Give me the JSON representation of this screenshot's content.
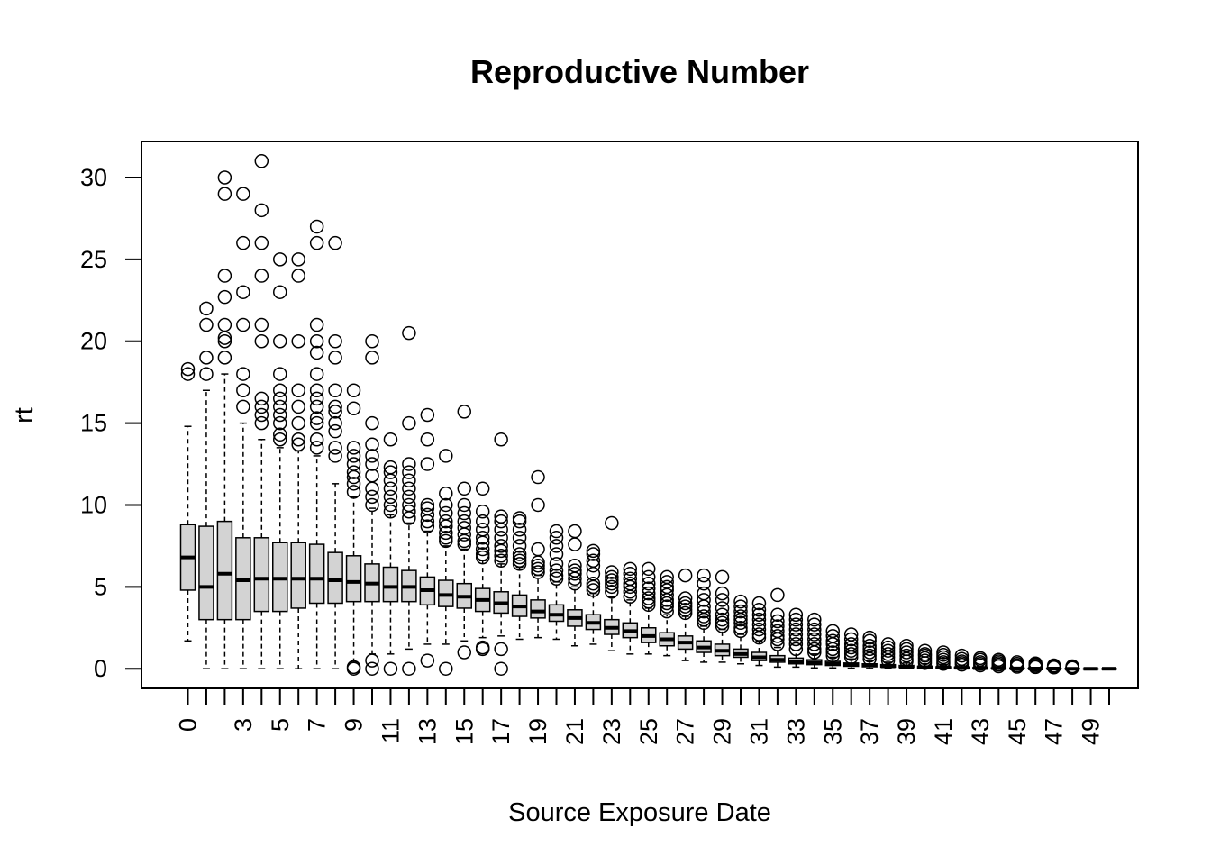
{
  "chart_data": {
    "type": "boxplot",
    "title": "Reproductive Number",
    "xlabel": "Source Exposure Date",
    "ylabel": "rt",
    "ylim": [
      -1.2,
      32.2
    ],
    "y_ticks": [
      0,
      5,
      10,
      15,
      20,
      25,
      30
    ],
    "x_tick_labels": [
      "0",
      "3",
      "5",
      "7",
      "9",
      "11",
      "13",
      "15",
      "17",
      "19",
      "21",
      "23",
      "25",
      "27",
      "29",
      "31",
      "33",
      "35",
      "37",
      "39",
      "41",
      "43",
      "45",
      "47",
      "49"
    ],
    "fill_color": "#d3d3d3",
    "categories": [
      0,
      1,
      2,
      3,
      4,
      5,
      6,
      7,
      8,
      9,
      10,
      11,
      12,
      13,
      14,
      15,
      16,
      17,
      18,
      19,
      20,
      21,
      22,
      23,
      24,
      25,
      26,
      27,
      28,
      29,
      30,
      31,
      32,
      33,
      34,
      35,
      36,
      37,
      38,
      39,
      40,
      41,
      42,
      43,
      44,
      45,
      46,
      47,
      48,
      49,
      50
    ],
    "boxes": [
      {
        "x": 0,
        "lower_whisker": 1.7,
        "q1": 4.8,
        "median": 6.8,
        "q3": 8.8,
        "upper_whisker": 14.8,
        "outliers": [
          18,
          18.3
        ]
      },
      {
        "x": 1,
        "lower_whisker": 0,
        "q1": 3,
        "median": 5,
        "q3": 8.7,
        "upper_whisker": 17,
        "outliers": [
          18,
          19,
          21,
          22
        ]
      },
      {
        "x": 2,
        "lower_whisker": 0,
        "q1": 3,
        "median": 5.8,
        "q3": 9,
        "upper_whisker": 18,
        "outliers": [
          19,
          20,
          20.2,
          21,
          22.7,
          24,
          29,
          30
        ]
      },
      {
        "x": 3,
        "lower_whisker": 0,
        "q1": 3,
        "median": 5.4,
        "q3": 8,
        "upper_whisker": 15,
        "outliers": [
          16,
          17,
          18,
          21,
          23,
          26,
          29
        ]
      },
      {
        "x": 4,
        "lower_whisker": 0,
        "q1": 3.5,
        "median": 5.5,
        "q3": 8,
        "upper_whisker": 14,
        "outliers": [
          15,
          15.5,
          16,
          16.5,
          20,
          21,
          24,
          26,
          28,
          31
        ]
      },
      {
        "x": 5,
        "lower_whisker": 0,
        "q1": 3.5,
        "median": 5.5,
        "q3": 7.7,
        "upper_whisker": 13.5,
        "outliers": [
          14,
          14.3,
          15,
          15.5,
          16,
          16.5,
          17,
          18,
          20,
          23,
          25
        ]
      },
      {
        "x": 6,
        "lower_whisker": 0,
        "q1": 3.7,
        "median": 5.5,
        "q3": 7.7,
        "upper_whisker": 13.3,
        "outliers": [
          13.7,
          14,
          15,
          16,
          17,
          20,
          24,
          25
        ]
      },
      {
        "x": 7,
        "lower_whisker": 0,
        "q1": 4,
        "median": 5.5,
        "q3": 7.6,
        "upper_whisker": 13,
        "outliers": [
          13.5,
          14,
          15,
          15.3,
          16,
          16.5,
          17,
          18,
          19.3,
          20,
          21,
          26,
          27
        ]
      },
      {
        "x": 8,
        "lower_whisker": 0,
        "q1": 4,
        "median": 5.4,
        "q3": 7.1,
        "upper_whisker": 11.3,
        "outliers": [
          13,
          13.5,
          14.5,
          15,
          15.7,
          16,
          17,
          19,
          20,
          26
        ]
      },
      {
        "x": 9,
        "lower_whisker": 0.4,
        "q1": 4.1,
        "median": 5.3,
        "q3": 6.9,
        "upper_whisker": 10.5,
        "outliers": [
          0,
          0.1,
          10.8,
          11.3,
          11.7,
          12,
          12.5,
          13,
          13.5,
          15.9,
          17
        ]
      },
      {
        "x": 10,
        "lower_whisker": 0.9,
        "q1": 4.1,
        "median": 5.2,
        "q3": 6.4,
        "upper_whisker": 9.8,
        "outliers": [
          0,
          0.5,
          10,
          10.5,
          11,
          11.8,
          12.5,
          13,
          13.7,
          15,
          19,
          20
        ]
      },
      {
        "x": 11,
        "lower_whisker": 0.9,
        "q1": 4.1,
        "median": 5,
        "q3": 6.2,
        "upper_whisker": 9.4,
        "outliers": [
          0,
          9.6,
          10,
          10.5,
          11,
          11.5,
          12,
          12.3,
          14
        ]
      },
      {
        "x": 12,
        "lower_whisker": 1.2,
        "q1": 4.1,
        "median": 5,
        "q3": 6,
        "upper_whisker": 8.9,
        "outliers": [
          0,
          9.2,
          9.6,
          10,
          10.5,
          11,
          11.5,
          12,
          12.5,
          15,
          20.5
        ]
      },
      {
        "x": 13,
        "lower_whisker": 1.5,
        "q1": 3.9,
        "median": 4.8,
        "q3": 5.6,
        "upper_whisker": 8.4,
        "outliers": [
          0.5,
          8.7,
          9,
          9.4,
          9.8,
          10,
          12.5,
          14,
          15.5
        ]
      },
      {
        "x": 14,
        "lower_whisker": 1.5,
        "q1": 3.8,
        "median": 4.5,
        "q3": 5.4,
        "upper_whisker": 7.5,
        "outliers": [
          0,
          7.8,
          8,
          8.3,
          8.7,
          9,
          9.5,
          10,
          10.7,
          13
        ]
      },
      {
        "x": 15,
        "lower_whisker": 1.7,
        "q1": 3.7,
        "median": 4.4,
        "q3": 5.2,
        "upper_whisker": 7.3,
        "outliers": [
          1,
          7.6,
          7.8,
          8.2,
          8.6,
          9,
          9.5,
          10,
          11,
          15.7
        ]
      },
      {
        "x": 16,
        "lower_whisker": 1.9,
        "q1": 3.5,
        "median": 4.2,
        "q3": 4.9,
        "upper_whisker": 6.6,
        "outliers": [
          1.2,
          1.3,
          6.8,
          7,
          7.3,
          7.7,
          8,
          8.5,
          9,
          9.6,
          11
        ]
      },
      {
        "x": 17,
        "lower_whisker": 2,
        "q1": 3.4,
        "median": 4,
        "q3": 4.7,
        "upper_whisker": 6.4,
        "outliers": [
          0,
          1.2,
          6.6,
          6.9,
          7.2,
          7.5,
          8,
          8.5,
          9,
          9.3,
          14
        ]
      },
      {
        "x": 18,
        "lower_whisker": 1.8,
        "q1": 3.2,
        "median": 3.8,
        "q3": 4.5,
        "upper_whisker": 6.2,
        "outliers": [
          6.4,
          6.6,
          6.8,
          7,
          7.5,
          8,
          8.5,
          9,
          9.2
        ]
      },
      {
        "x": 19,
        "lower_whisker": 1.9,
        "q1": 3.1,
        "median": 3.5,
        "q3": 4.2,
        "upper_whisker": 5.7,
        "outliers": [
          5.9,
          6.1,
          6.3,
          6.5,
          7.3,
          10,
          11.7
        ]
      },
      {
        "x": 20,
        "lower_whisker": 1.8,
        "q1": 2.9,
        "median": 3.3,
        "q3": 3.9,
        "upper_whisker": 5.3,
        "outliers": [
          5.5,
          5.7,
          6,
          6.4,
          7,
          7.5,
          8,
          8.4
        ]
      },
      {
        "x": 21,
        "lower_whisker": 1.4,
        "q1": 2.6,
        "median": 3.1,
        "q3": 3.6,
        "upper_whisker": 5,
        "outliers": [
          5.2,
          5.5,
          5.8,
          6,
          6.3,
          7.6,
          8.4
        ]
      },
      {
        "x": 22,
        "lower_whisker": 1.5,
        "q1": 2.4,
        "median": 2.8,
        "q3": 3.3,
        "upper_whisker": 4.6,
        "outliers": [
          4.8,
          5,
          5.2,
          5.8,
          6.3,
          6.6,
          7,
          7.2
        ]
      },
      {
        "x": 23,
        "lower_whisker": 1.1,
        "q1": 2.1,
        "median": 2.5,
        "q3": 3,
        "upper_whisker": 4.4,
        "outliers": [
          4.7,
          5,
          5.2,
          5.4,
          5.6,
          5.9,
          8.9
        ]
      },
      {
        "x": 24,
        "lower_whisker": 0.9,
        "q1": 1.9,
        "median": 2.3,
        "q3": 2.8,
        "upper_whisker": 4.2,
        "outliers": [
          4.4,
          4.7,
          5,
          5.2,
          5.5,
          5.8,
          6.1
        ]
      },
      {
        "x": 25,
        "lower_whisker": 0.9,
        "q1": 1.6,
        "median": 2,
        "q3": 2.5,
        "upper_whisker": 3.7,
        "outliers": [
          3.9,
          4.1,
          4.3,
          4.6,
          4.9,
          5.2,
          5.6,
          6.1
        ]
      },
      {
        "x": 26,
        "lower_whisker": 0.8,
        "q1": 1.4,
        "median": 1.8,
        "q3": 2.2,
        "upper_whisker": 3.3,
        "outliers": [
          3.5,
          3.8,
          4,
          4.2,
          4.5,
          4.8,
          5,
          5.3,
          5.6
        ]
      },
      {
        "x": 27,
        "lower_whisker": 0.5,
        "q1": 1.2,
        "median": 1.6,
        "q3": 2,
        "upper_whisker": 3.2,
        "outliers": [
          3.4,
          3.6,
          3.8,
          4,
          4.3,
          5.7
        ]
      },
      {
        "x": 28,
        "lower_whisker": 0.4,
        "q1": 1,
        "median": 1.3,
        "q3": 1.7,
        "upper_whisker": 2.6,
        "outliers": [
          2.8,
          3,
          3.2,
          3.5,
          3.8,
          4.2,
          4.6,
          5.2,
          5.7
        ]
      },
      {
        "x": 29,
        "lower_whisker": 0.4,
        "q1": 0.8,
        "median": 1.1,
        "q3": 1.5,
        "upper_whisker": 2.4,
        "outliers": [
          2.6,
          2.8,
          3,
          3.3,
          3.7,
          4.2,
          4.6,
          5.6
        ]
      },
      {
        "x": 30,
        "lower_whisker": 0.3,
        "q1": 0.7,
        "median": 0.9,
        "q3": 1.2,
        "upper_whisker": 2.1,
        "outliers": [
          2.3,
          2.5,
          2.8,
          3,
          3.2,
          3.5,
          3.8,
          4.1
        ]
      },
      {
        "x": 31,
        "lower_whisker": 0.2,
        "q1": 0.5,
        "median": 0.7,
        "q3": 1,
        "upper_whisker": 1.7,
        "outliers": [
          1.9,
          2.1,
          2.4,
          2.7,
          3,
          3.3,
          3.6,
          4
        ]
      },
      {
        "x": 32,
        "lower_whisker": 0.1,
        "q1": 0.4,
        "median": 0.55,
        "q3": 0.8,
        "upper_whisker": 1.3,
        "outliers": [
          1.5,
          1.8,
          2,
          2.3,
          2.6,
          2.9,
          3.3,
          4.5
        ]
      },
      {
        "x": 33,
        "lower_whisker": 0.1,
        "q1": 0.3,
        "median": 0.45,
        "q3": 0.65,
        "upper_whisker": 1.1,
        "outliers": [
          1.2,
          1.5,
          1.8,
          2.1,
          2.4,
          2.7,
          3,
          3.3
        ]
      },
      {
        "x": 34,
        "lower_whisker": 0.05,
        "q1": 0.25,
        "median": 0.38,
        "q3": 0.55,
        "upper_whisker": 0.9,
        "outliers": [
          1,
          1.2,
          1.5,
          1.8,
          2.1,
          2.4,
          2.7,
          3
        ]
      },
      {
        "x": 35,
        "lower_whisker": 0.05,
        "q1": 0.2,
        "median": 0.3,
        "q3": 0.45,
        "upper_whisker": 0.7,
        "outliers": [
          0.8,
          1,
          1.2,
          1.5,
          1.7,
          2,
          2.3
        ]
      },
      {
        "x": 36,
        "lower_whisker": 0.03,
        "q1": 0.15,
        "median": 0.25,
        "q3": 0.35,
        "upper_whisker": 0.6,
        "outliers": [
          0.7,
          0.9,
          1.1,
          1.3,
          1.5,
          1.8,
          2.1
        ]
      },
      {
        "x": 37,
        "lower_whisker": 0.02,
        "q1": 0.12,
        "median": 0.2,
        "q3": 0.3,
        "upper_whisker": 0.5,
        "outliers": [
          0.6,
          0.8,
          1,
          1.2,
          1.4,
          1.7,
          1.9
        ]
      },
      {
        "x": 38,
        "lower_whisker": 0.01,
        "q1": 0.1,
        "median": 0.15,
        "q3": 0.25,
        "upper_whisker": 0.4,
        "outliers": [
          0.5,
          0.7,
          0.9,
          1.1,
          1.3,
          1.5
        ]
      },
      {
        "x": 39,
        "lower_whisker": 0.01,
        "q1": 0.08,
        "median": 0.12,
        "q3": 0.2,
        "upper_whisker": 0.35,
        "outliers": [
          0.45,
          0.6,
          0.8,
          1,
          1.2,
          1.4
        ]
      },
      {
        "x": 40,
        "lower_whisker": 0,
        "q1": 0.05,
        "median": 0.1,
        "q3": 0.15,
        "upper_whisker": 0.3,
        "outliers": [
          0.35,
          0.5,
          0.65,
          0.8,
          0.9,
          1.1
        ]
      },
      {
        "x": 41,
        "lower_whisker": 0,
        "q1": 0.04,
        "median": 0.08,
        "q3": 0.12,
        "upper_whisker": 0.25,
        "outliers": [
          0.3,
          0.4,
          0.55,
          0.7,
          0.85,
          1
        ]
      },
      {
        "x": 42,
        "lower_whisker": 0,
        "q1": 0.03,
        "median": 0.06,
        "q3": 0.1,
        "upper_whisker": 0.2,
        "outliers": [
          0.25,
          0.35,
          0.45,
          0.6,
          0.8
        ]
      },
      {
        "x": 43,
        "lower_whisker": 0,
        "q1": 0.02,
        "median": 0.04,
        "q3": 0.07,
        "upper_whisker": 0.15,
        "outliers": [
          0.2,
          0.3,
          0.4,
          0.55,
          0.65
        ]
      },
      {
        "x": 44,
        "lower_whisker": 0,
        "q1": 0.01,
        "median": 0.03,
        "q3": 0.05,
        "upper_whisker": 0.1,
        "outliers": [
          0.15,
          0.25,
          0.35,
          0.45,
          0.55
        ]
      },
      {
        "x": 45,
        "lower_whisker": 0,
        "q1": 0.01,
        "median": 0.02,
        "q3": 0.04,
        "upper_whisker": 0.08,
        "outliers": [
          0.12,
          0.2,
          0.3,
          0.4
        ]
      },
      {
        "x": 46,
        "lower_whisker": 0,
        "q1": 0,
        "median": 0.01,
        "q3": 0.03,
        "upper_whisker": 0.06,
        "outliers": [
          0.1,
          0.18,
          0.26,
          0.33
        ]
      },
      {
        "x": 47,
        "lower_whisker": 0,
        "q1": 0,
        "median": 0.01,
        "q3": 0.02,
        "upper_whisker": 0.04,
        "outliers": [
          0.08,
          0.14,
          0.2
        ]
      },
      {
        "x": 48,
        "lower_whisker": 0,
        "q1": 0,
        "median": 0,
        "q3": 0.01,
        "upper_whisker": 0.02,
        "outliers": [
          0.05,
          0.1,
          0.15
        ]
      },
      {
        "x": 49,
        "lower_whisker": 0,
        "q1": 0,
        "median": 0,
        "q3": 0,
        "upper_whisker": 0,
        "outliers": []
      },
      {
        "x": 50,
        "lower_whisker": 0,
        "q1": 0,
        "median": 0,
        "q3": 0,
        "upper_whisker": 0,
        "outliers": []
      }
    ]
  }
}
